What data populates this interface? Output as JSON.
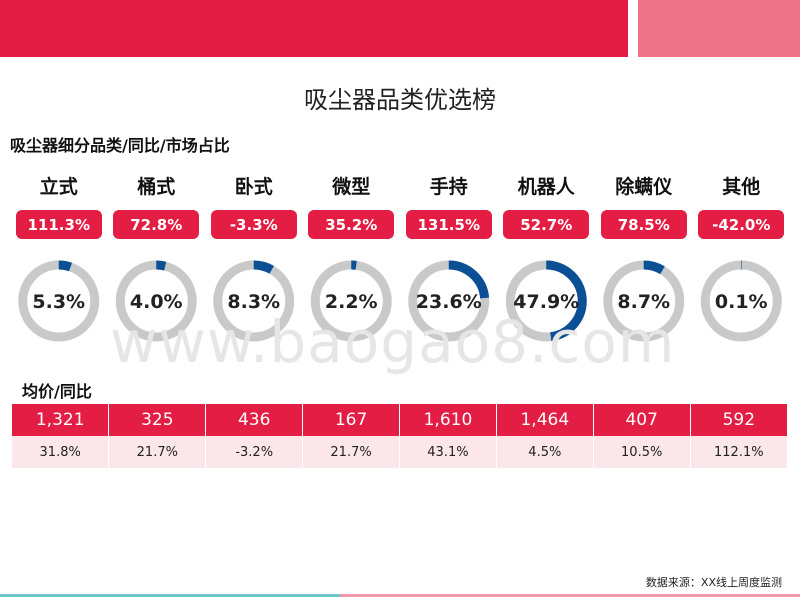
{
  "title": "吸尘器品类优选榜",
  "subtitle": "吸尘器细分品类/同比/市场占比",
  "price_label": "均价/同比",
  "source": "数据来源：XX线上周度监测",
  "watermark": "www.baogao8.com",
  "colors": {
    "accent": "#e31d43",
    "accent_light": "#ef7388",
    "ring_track": "#c9c9c9",
    "ring_fill": "#0b4f94"
  },
  "chart_data": {
    "type": "donut",
    "categories": [
      "立式",
      "桶式",
      "卧式",
      "微型",
      "手持",
      "机器人",
      "除螨仪",
      "其他"
    ],
    "yoy_growth": [
      "111.3%",
      "72.8%",
      "-3.3%",
      "35.2%",
      "131.5%",
      "52.7%",
      "78.5%",
      "-42.0%"
    ],
    "market_share_values": [
      5.3,
      4.0,
      8.3,
      2.2,
      23.6,
      47.9,
      8.7,
      0.1
    ],
    "market_share_labels": [
      "5.3%",
      "4.0%",
      "8.3%",
      "2.2%",
      "23.6%",
      "47.9%",
      "8.7%",
      "0.1%"
    ],
    "avg_price": [
      "1,321",
      "325",
      "436",
      "167",
      "1,610",
      "1,464",
      "407",
      "592"
    ],
    "avg_price_yoy": [
      "31.8%",
      "21.7%",
      "-3.2%",
      "21.7%",
      "43.1%",
      "4.5%",
      "10.5%",
      "112.1%"
    ]
  }
}
